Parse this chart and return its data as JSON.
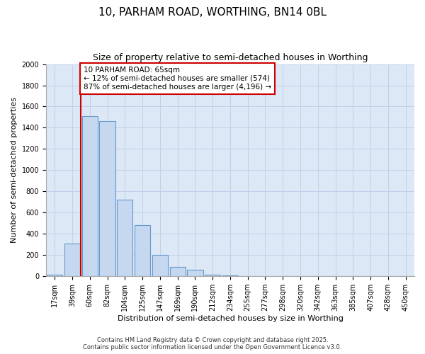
{
  "title1": "10, PARHAM ROAD, WORTHING, BN14 0BL",
  "title2": "Size of property relative to semi-detached houses in Worthing",
  "xlabel": "Distribution of semi-detached houses by size in Worthing",
  "ylabel": "Number of semi-detached properties",
  "categories": [
    "17sqm",
    "39sqm",
    "60sqm",
    "82sqm",
    "104sqm",
    "125sqm",
    "147sqm",
    "169sqm",
    "190sqm",
    "212sqm",
    "234sqm",
    "255sqm",
    "277sqm",
    "298sqm",
    "320sqm",
    "342sqm",
    "363sqm",
    "385sqm",
    "407sqm",
    "428sqm",
    "450sqm"
  ],
  "values": [
    15,
    310,
    1510,
    1460,
    720,
    480,
    200,
    90,
    60,
    15,
    5,
    3,
    2,
    1,
    0,
    0,
    0,
    0,
    0,
    0,
    0
  ],
  "bar_color": "#c5d8f0",
  "bar_edge_color": "#6699cc",
  "red_line_color": "#cc0000",
  "red_line_x": 2.0,
  "annotation_text": "10 PARHAM ROAD: 65sqm\n← 12% of semi-detached houses are smaller (574)\n87% of semi-detached houses are larger (4,196) →",
  "annotation_box_facecolor": "#ffffff",
  "annotation_box_edgecolor": "#cc0000",
  "ylim": [
    0,
    2000
  ],
  "yticks": [
    0,
    200,
    400,
    600,
    800,
    1000,
    1200,
    1400,
    1600,
    1800,
    2000
  ],
  "grid_color": "#c0d0e8",
  "plot_bg_color": "#dce8f5",
  "fig_bg_color": "#ffffff",
  "title1_fontsize": 11,
  "title2_fontsize": 9,
  "tick_fontsize": 7,
  "ylabel_fontsize": 8,
  "xlabel_fontsize": 8,
  "footer1": "Contains HM Land Registry data © Crown copyright and database right 2025.",
  "footer2": "Contains public sector information licensed under the Open Government Licence v3.0."
}
